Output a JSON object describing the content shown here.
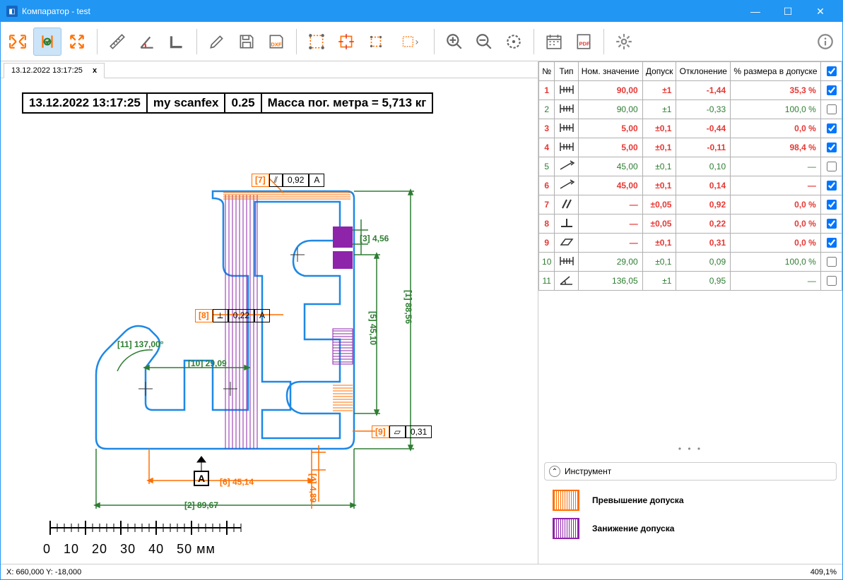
{
  "window": {
    "title": "Компаратор - test"
  },
  "tab": {
    "label": "13.12.2022 13:17:25",
    "close": "x"
  },
  "info": {
    "datetime": "13.12.2022 13:17:25",
    "name": "my scanfex",
    "val": "0.25",
    "mass": "Масса пог. метра = 5,713 кг"
  },
  "ruler": {
    "ticks": "0    10    20    30    40    50 мм"
  },
  "annotations": {
    "a1": "[7]",
    "a1b": "0,92",
    "a1c": "A",
    "a3": "[3]  4,56",
    "a8a": "[8]",
    "a8b": "0,22",
    "a8c": "A",
    "a5": "[5]  45,10",
    "a1v": "[1]  88,56",
    "a11": "[11]  137,00°",
    "a10": "[10]  29,09",
    "a9a": "[9]",
    "a9b": "0,31",
    "aA": "A",
    "a6": "[6]  45,14",
    "a4": "[4]  4,89",
    "a2": "[2]  89,67"
  },
  "table": {
    "headers": {
      "n": "№",
      "type": "Тип",
      "nom": "Ном. значение",
      "tol": "Допуск",
      "dev": "Отклонение",
      "pct": "% размера в допуске"
    },
    "rows": [
      {
        "n": "1",
        "type": "dim",
        "nom": "90,00",
        "tol": "±1",
        "dev": "-1,44",
        "pct": "35,3 %",
        "cls": "row-red",
        "cb": true
      },
      {
        "n": "2",
        "type": "dim",
        "nom": "90,00",
        "tol": "±1",
        "dev": "-0,33",
        "pct": "100,0 %",
        "cls": "row-green",
        "cb": false
      },
      {
        "n": "3",
        "type": "dim",
        "nom": "5,00",
        "tol": "±0,1",
        "dev": "-0,44",
        "pct": "0,0 %",
        "cls": "row-red",
        "cb": true
      },
      {
        "n": "4",
        "type": "dim",
        "nom": "5,00",
        "tol": "±0,1",
        "dev": "-0,11",
        "pct": "98,4 %",
        "cls": "row-red",
        "cb": true
      },
      {
        "n": "5",
        "type": "ang",
        "nom": "45,00",
        "tol": "±0,1",
        "dev": "0,10",
        "pct": "—",
        "cls": "row-green",
        "cb": false
      },
      {
        "n": "6",
        "type": "ang",
        "nom": "45,00",
        "tol": "±0,1",
        "dev": "0,14",
        "pct": "—",
        "cls": "row-red",
        "cb": true
      },
      {
        "n": "7",
        "type": "par",
        "nom": "—",
        "tol": "±0,05",
        "dev": "0,92",
        "pct": "0,0 %",
        "cls": "row-red",
        "cb": true
      },
      {
        "n": "8",
        "type": "perp",
        "nom": "—",
        "tol": "±0,05",
        "dev": "0,22",
        "pct": "0,0 %",
        "cls": "row-red",
        "cb": true
      },
      {
        "n": "9",
        "type": "flat",
        "nom": "—",
        "tol": "±0,1",
        "dev": "0,31",
        "pct": "0,0 %",
        "cls": "row-red",
        "cb": true
      },
      {
        "n": "10",
        "type": "dim",
        "nom": "29,00",
        "tol": "±0,1",
        "dev": "0,09",
        "pct": "100,0 %",
        "cls": "row-green",
        "cb": false
      },
      {
        "n": "11",
        "type": "ang2",
        "nom": "136,05",
        "tol": "±1",
        "dev": "0,95",
        "pct": "—",
        "cls": "row-green",
        "cb": false
      }
    ]
  },
  "instrument": {
    "header": "Инструмент",
    "legend1": "Превышение допуска",
    "legend2": "Занижение допуска"
  },
  "status": {
    "coords": "X: 660,000 Y: -18,000",
    "zoom": "409,1%"
  },
  "colors": {
    "red": "#e53935",
    "green": "#2e7d32",
    "orange": "#ff6f00",
    "purple": "#8e24aa",
    "blue": "#1e88e5"
  }
}
